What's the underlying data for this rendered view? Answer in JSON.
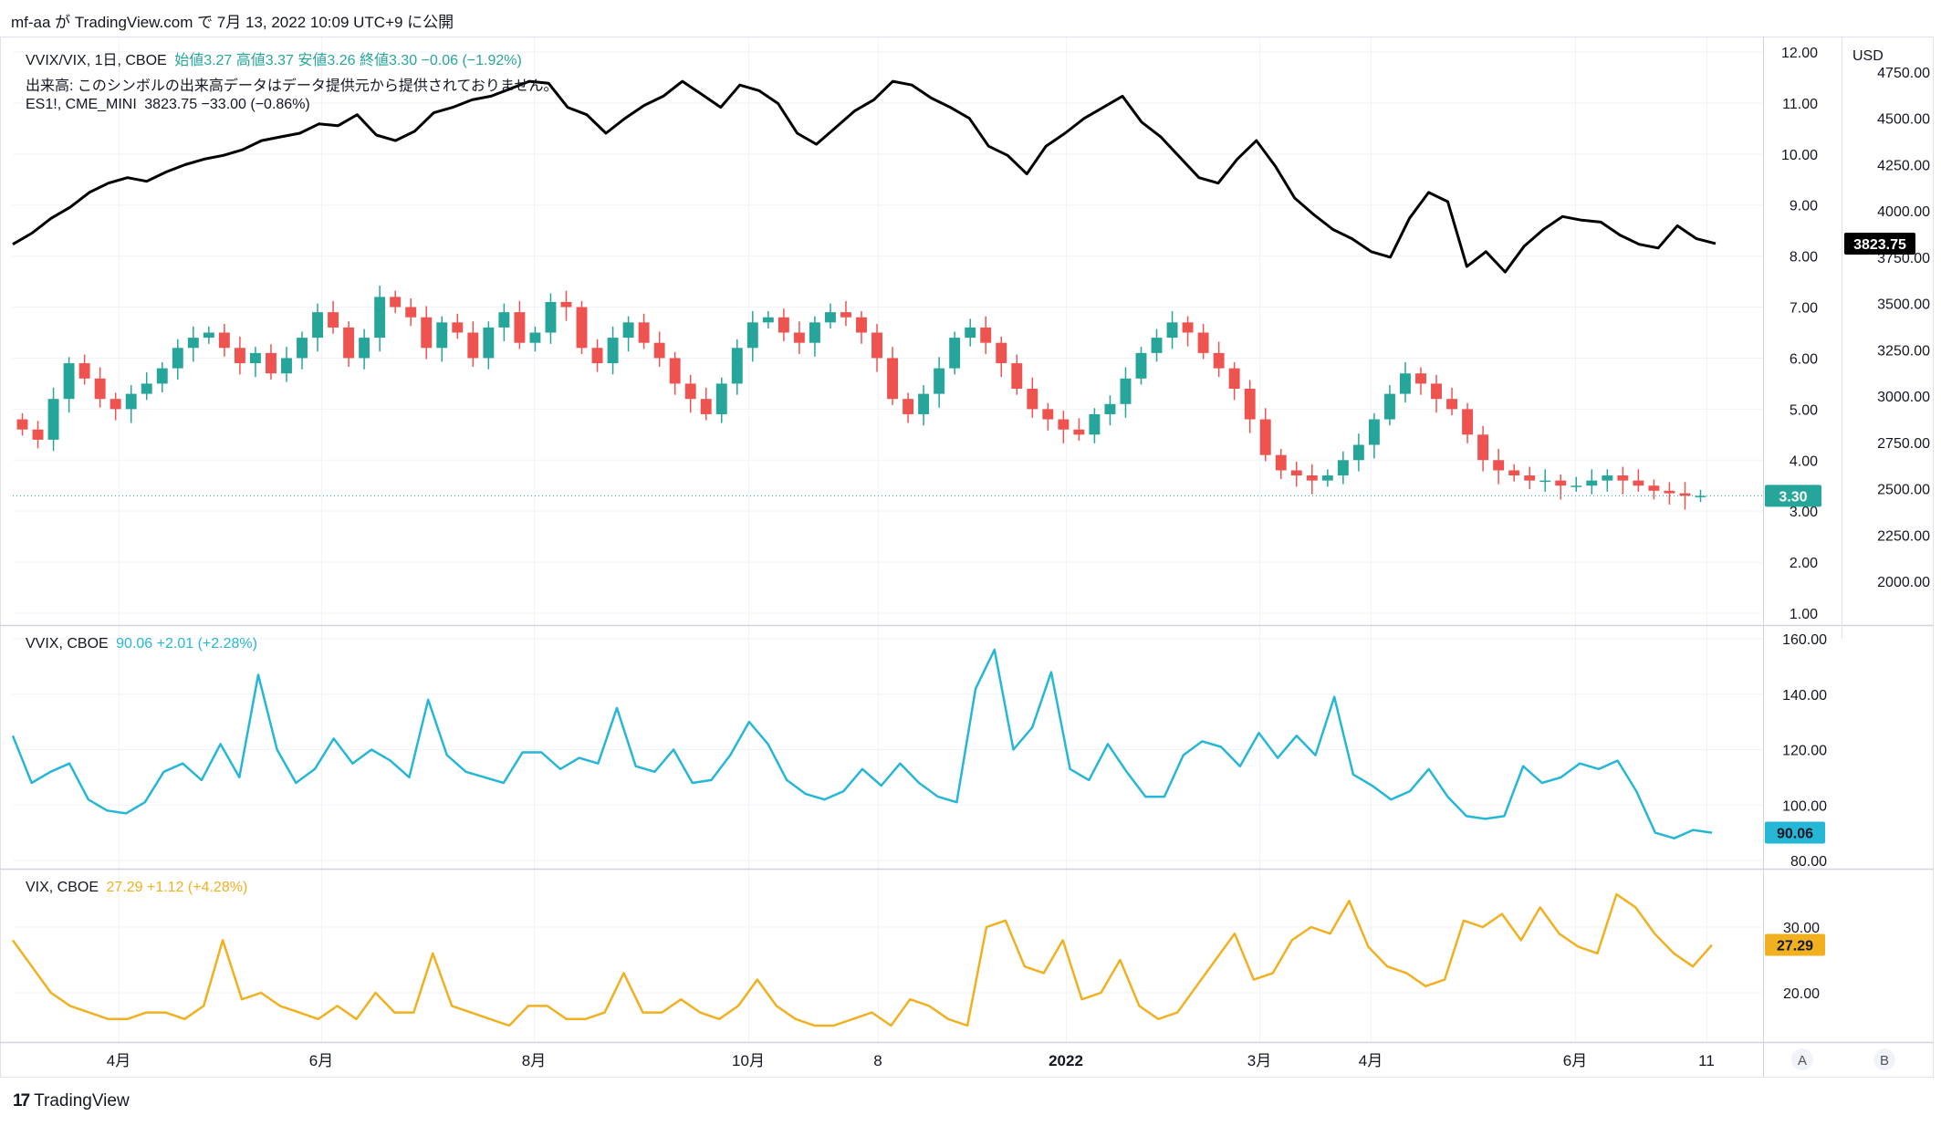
{
  "header": {
    "publish_line": "mf-aa が TradingView.com で 7月 13, 2022 10:09 UTC+9 に公開"
  },
  "legend_main": {
    "symbol": "VVIX/VIX, 1日, CBOE",
    "ohlc_text": "始値3.27 高値3.37 安値3.26 終値3.30 −0.06 (−1.92%)",
    "volume_note": "出来高: このシンボルの出来高データはデータ提供元から提供されておりません。",
    "es_symbol": "ES1!, CME_MINI",
    "es_values": "3823.75 −33.00 (−0.86%)"
  },
  "legend_vvix": {
    "symbol": "VVIX, CBOE",
    "values": "90.06 +2.01 (+2.28%)"
  },
  "legend_vix": {
    "symbol": "VIX, CBOE",
    "values": "27.29 +1.12 (+4.28%)"
  },
  "footer": {
    "brand": "TradingView"
  },
  "chart_data": [
    {
      "type": "candlestick",
      "title": "VVIX/VIX, 1日, CBOE",
      "currency_label": "USD",
      "y_axis_left_ticks": [
        1,
        2,
        3,
        4,
        5,
        6,
        7,
        8,
        9,
        10,
        11,
        12
      ],
      "y_axis_left_tick_labels": [
        "1.00",
        "2.00",
        "3.00",
        "4.00",
        "5.00",
        "6.00",
        "7.00",
        "8.00",
        "9.00",
        "10.00",
        "11.00",
        "12.00"
      ],
      "y_axis_right_ticks": [
        2000,
        2250,
        2500,
        2750,
        3000,
        3250,
        3500,
        3750,
        4000,
        4250,
        4500,
        4750
      ],
      "y_axis_right_tick_labels": [
        "2000.00",
        "2250.00",
        "2500.00",
        "2750.00",
        "3000.00",
        "3250.00",
        "3500.00",
        "3750.00",
        "4000.00",
        "4250.00",
        "4500.00",
        "4750.00"
      ],
      "last_value_label": "3.30",
      "es_last_value_label": "3823.75",
      "ratio_closes": [
        4.6,
        4.4,
        5.2,
        5.9,
        5.6,
        5.2,
        5.0,
        5.3,
        5.5,
        5.8,
        6.2,
        6.4,
        6.5,
        6.2,
        5.9,
        6.1,
        5.7,
        6.0,
        6.4,
        6.9,
        6.6,
        6.0,
        6.4,
        7.2,
        7.0,
        6.8,
        6.2,
        6.7,
        6.5,
        6.0,
        6.6,
        6.9,
        6.3,
        6.5,
        7.1,
        7.0,
        6.2,
        5.9,
        6.4,
        6.7,
        6.3,
        6.0,
        5.5,
        5.2,
        4.9,
        5.5,
        6.2,
        6.7,
        6.8,
        6.5,
        6.3,
        6.7,
        6.9,
        6.8,
        6.5,
        6.0,
        5.2,
        4.9,
        5.3,
        5.8,
        6.4,
        6.6,
        6.3,
        5.9,
        5.4,
        5.0,
        4.8,
        4.6,
        4.5,
        4.9,
        5.1,
        5.6,
        6.1,
        6.4,
        6.7,
        6.5,
        6.1,
        5.8,
        5.4,
        4.8,
        4.1,
        3.8,
        3.7,
        3.6,
        3.7,
        4.0,
        4.3,
        4.8,
        5.3,
        5.7,
        5.5,
        5.2,
        5.0,
        4.5,
        4.0,
        3.8,
        3.7,
        3.6,
        3.6,
        3.5,
        3.5,
        3.6,
        3.7,
        3.6,
        3.5,
        3.4,
        3.35,
        3.3,
        3.3
      ],
      "es1_closes": [
        3820,
        3880,
        3960,
        4020,
        4100,
        4150,
        4180,
        4160,
        4210,
        4250,
        4280,
        4300,
        4330,
        4380,
        4400,
        4420,
        4470,
        4460,
        4520,
        4410,
        4380,
        4430,
        4530,
        4560,
        4600,
        4620,
        4660,
        4700,
        4690,
        4560,
        4520,
        4420,
        4500,
        4570,
        4620,
        4700,
        4630,
        4560,
        4680,
        4650,
        4580,
        4420,
        4360,
        4450,
        4540,
        4600,
        4700,
        4680,
        4610,
        4560,
        4500,
        4350,
        4300,
        4200,
        4350,
        4420,
        4500,
        4560,
        4620,
        4480,
        4400,
        4290,
        4180,
        4150,
        4280,
        4380,
        4240,
        4070,
        3980,
        3900,
        3850,
        3780,
        3750,
        3960,
        4100,
        4050,
        3700,
        3780,
        3670,
        3810,
        3900,
        3970,
        3950,
        3940,
        3870,
        3820,
        3800,
        3920,
        3850,
        3823.75
      ],
      "x_axis_labels": [
        "4月",
        "6月",
        "8月",
        "10月",
        "8",
        "2022",
        "3月",
        "4月",
        "6月",
        "11"
      ]
    },
    {
      "type": "line",
      "title": "VVIX, CBOE",
      "y_axis_ticks": [
        80,
        100,
        120,
        140,
        160
      ],
      "y_axis_tick_labels": [
        "80.00",
        "100.00",
        "120.00",
        "140.00",
        "160.00"
      ],
      "last_value_label": "90.06",
      "values": [
        125,
        108,
        112,
        115,
        102,
        98,
        97,
        101,
        112,
        115,
        109,
        122,
        110,
        147,
        120,
        108,
        113,
        124,
        115,
        120,
        116,
        110,
        138,
        118,
        112,
        110,
        108,
        119,
        119,
        113,
        117,
        115,
        135,
        114,
        112,
        120,
        108,
        109,
        118,
        130,
        122,
        109,
        104,
        102,
        105,
        113,
        107,
        115,
        108,
        103,
        101,
        142,
        156,
        120,
        128,
        148,
        113,
        109,
        122,
        112,
        103,
        103,
        118,
        123,
        121,
        114,
        126,
        117,
        125,
        118,
        139,
        111,
        107,
        102,
        105,
        113,
        103,
        96,
        95,
        96,
        114,
        108,
        110,
        115,
        113,
        116,
        105,
        90,
        88,
        91,
        90
      ]
    },
    {
      "type": "line",
      "title": "VIX, CBOE",
      "y_axis_ticks": [
        20,
        30
      ],
      "y_axis_tick_labels": [
        "20.00",
        "30.00"
      ],
      "last_value_label": "27.29",
      "values": [
        28,
        24,
        20,
        18,
        17,
        16,
        16,
        17,
        17,
        16,
        18,
        28,
        19,
        20,
        18,
        17,
        16,
        18,
        16,
        20,
        17,
        17,
        26,
        18,
        17,
        16,
        15,
        18,
        18,
        16,
        16,
        17,
        23,
        17,
        17,
        19,
        17,
        16,
        18,
        22,
        18,
        16,
        15,
        15,
        16,
        17,
        15,
        19,
        18,
        16,
        15,
        30,
        31,
        24,
        23,
        28,
        19,
        20,
        25,
        18,
        16,
        17,
        21,
        25,
        29,
        22,
        23,
        28,
        30,
        29,
        34,
        27,
        24,
        23,
        21,
        22,
        31,
        30,
        32,
        28,
        33,
        29,
        27,
        26,
        35,
        33,
        29,
        26,
        24,
        27.29
      ]
    }
  ]
}
